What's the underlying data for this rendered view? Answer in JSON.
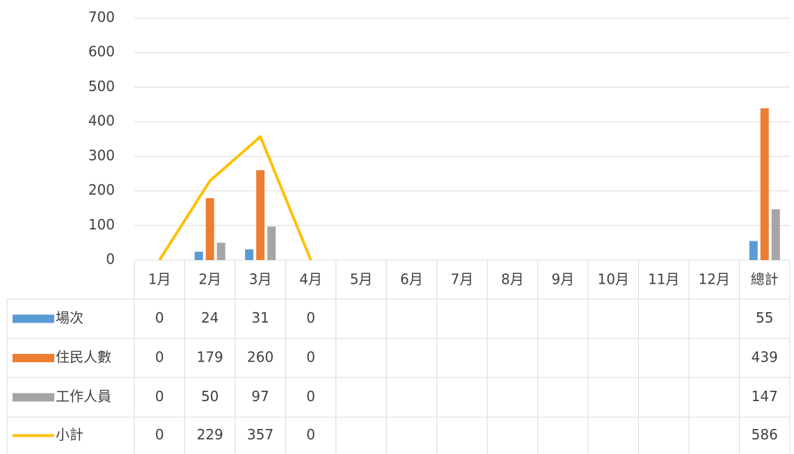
{
  "chart_data": {
    "type": "bar",
    "categories": [
      "1月",
      "2月",
      "3月",
      "4月",
      "5月",
      "6月",
      "7月",
      "8月",
      "9月",
      "10月",
      "11月",
      "12月",
      "總計"
    ],
    "series": [
      {
        "name": "場次",
        "color": "#5b9bd5",
        "type": "bar",
        "values": [
          0,
          24,
          31,
          0,
          null,
          null,
          null,
          null,
          null,
          null,
          null,
          null,
          55
        ]
      },
      {
        "name": "住民人數",
        "color": "#ed7d31",
        "type": "bar",
        "values": [
          0,
          179,
          260,
          0,
          null,
          null,
          null,
          null,
          null,
          null,
          null,
          null,
          439
        ]
      },
      {
        "name": "工作人員",
        "color": "#a5a5a5",
        "type": "bar",
        "values": [
          0,
          50,
          97,
          0,
          null,
          null,
          null,
          null,
          null,
          null,
          null,
          null,
          147
        ]
      },
      {
        "name": "小計",
        "color": "#ffc000",
        "type": "line",
        "values": [
          0,
          229,
          357,
          0,
          null,
          null,
          null,
          null,
          null,
          null,
          null,
          null,
          586
        ]
      }
    ],
    "ylim": [
      0,
      700
    ],
    "yticks": [
      0,
      100,
      200,
      300,
      400,
      500,
      600,
      700
    ],
    "grid": true
  }
}
